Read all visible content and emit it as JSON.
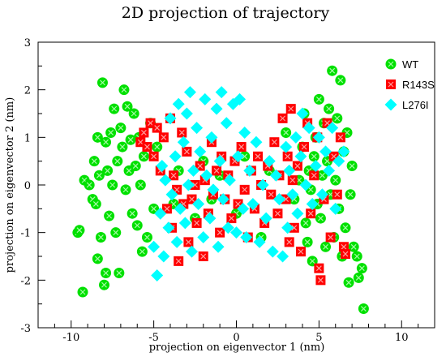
{
  "chart_data": {
    "type": "scatter",
    "title": "2D projection of trajectory",
    "xlabel": "projection on eigenvector 1 (nm)",
    "ylabel": "projection on eigenvector  2 (nm)",
    "xlim": [
      -12,
      12
    ],
    "ylim": [
      -3,
      3
    ],
    "xticks": [
      "-10",
      "-5",
      "0",
      "5",
      "10"
    ],
    "yticks": [
      "-3",
      "-2",
      "-1",
      "0",
      "1",
      "2",
      "3"
    ],
    "legend_position": "top-right",
    "grid": false,
    "series": [
      {
        "name": "WT",
        "color": "#00e000",
        "marker": "circle",
        "points": [
          [
            -9.6,
            -1.0
          ],
          [
            -9.5,
            -0.95
          ],
          [
            -9.3,
            -2.25
          ],
          [
            -9.2,
            0.1
          ],
          [
            -8.9,
            0.0
          ],
          [
            -8.7,
            -0.3
          ],
          [
            -8.6,
            0.5
          ],
          [
            -8.5,
            -0.4
          ],
          [
            -8.4,
            1.0
          ],
          [
            -8.4,
            -1.55
          ],
          [
            -8.3,
            0.2
          ],
          [
            -8.2,
            -1.1
          ],
          [
            -8.1,
            2.15
          ],
          [
            -8.0,
            -2.1
          ],
          [
            -7.9,
            -1.85
          ],
          [
            -7.9,
            0.9
          ],
          [
            -7.8,
            0.3
          ],
          [
            -7.7,
            -0.65
          ],
          [
            -7.6,
            1.1
          ],
          [
            -7.5,
            0.0
          ],
          [
            -7.4,
            1.6
          ],
          [
            -7.3,
            -1.0
          ],
          [
            -7.2,
            0.5
          ],
          [
            -7.1,
            -1.85
          ],
          [
            -7.0,
            1.2
          ],
          [
            -6.9,
            0.8
          ],
          [
            -6.8,
            2.0
          ],
          [
            -6.7,
            -0.1
          ],
          [
            -6.6,
            1.65
          ],
          [
            -6.5,
            0.3
          ],
          [
            -6.4,
            0.95
          ],
          [
            -6.3,
            -0.6
          ],
          [
            -6.2,
            1.5
          ],
          [
            -6.1,
            0.4
          ],
          [
            -6.0,
            -0.85
          ],
          [
            -5.9,
            1.0
          ],
          [
            -5.8,
            0.0
          ],
          [
            -5.7,
            -1.4
          ],
          [
            -5.6,
            0.6
          ],
          [
            -5.4,
            -1.1
          ],
          [
            -5.2,
            1.3
          ],
          [
            -5.0,
            -0.5
          ],
          [
            -4.8,
            0.8
          ],
          [
            -3.8,
            -0.4
          ],
          [
            -3.5,
            0.3
          ],
          [
            -2.5,
            -0.7
          ],
          [
            -2.0,
            0.5
          ],
          [
            -1.5,
            -0.3
          ],
          [
            -1.0,
            0.2
          ],
          [
            0.0,
            -0.6
          ],
          [
            0.5,
            0.6
          ],
          [
            1.5,
            -1.1
          ],
          [
            2.0,
            0.3
          ],
          [
            3.0,
            1.1
          ],
          [
            3.5,
            -0.3
          ],
          [
            3.8,
            0.1
          ],
          [
            4.0,
            0.8
          ],
          [
            4.1,
            1.5
          ],
          [
            4.2,
            -0.8
          ],
          [
            4.3,
            -1.2
          ],
          [
            4.4,
            0.3
          ],
          [
            4.5,
            -0.1
          ],
          [
            4.6,
            -1.6
          ],
          [
            4.7,
            0.6
          ],
          [
            4.8,
            1.0
          ],
          [
            4.9,
            -0.4
          ],
          [
            5.0,
            1.8
          ],
          [
            5.1,
            -0.7
          ],
          [
            5.2,
            0.2
          ],
          [
            5.3,
            1.3
          ],
          [
            5.4,
            -1.3
          ],
          [
            5.5,
            0.5
          ],
          [
            5.6,
            1.6
          ],
          [
            5.7,
            -0.2
          ],
          [
            5.8,
            2.4
          ],
          [
            5.9,
            -1.1
          ],
          [
            6.0,
            0.1
          ],
          [
            6.1,
            1.4
          ],
          [
            6.2,
            -0.5
          ],
          [
            6.3,
            2.2
          ],
          [
            6.4,
            -1.5
          ],
          [
            6.5,
            0.7
          ],
          [
            6.6,
            -0.9
          ],
          [
            6.7,
            1.1
          ],
          [
            6.8,
            -2.05
          ],
          [
            6.9,
            -0.2
          ],
          [
            7.0,
            0.4
          ],
          [
            7.1,
            -1.3
          ],
          [
            7.3,
            -1.5
          ],
          [
            7.4,
            -1.95
          ],
          [
            7.6,
            -1.75
          ],
          [
            7.7,
            -2.6
          ]
        ]
      },
      {
        "name": "R143S",
        "color": "#ff0000",
        "marker": "square",
        "points": [
          [
            -5.8,
            0.9
          ],
          [
            -5.6,
            1.1
          ],
          [
            -5.4,
            0.8
          ],
          [
            -5.2,
            1.3
          ],
          [
            -5.0,
            0.6
          ],
          [
            -4.8,
            1.2
          ],
          [
            -4.6,
            0.3
          ],
          [
            -4.4,
            1.0
          ],
          [
            -4.2,
            -0.5
          ],
          [
            -4.0,
            1.4
          ],
          [
            -3.9,
            -0.9
          ],
          [
            -3.8,
            0.2
          ],
          [
            -3.6,
            -0.1
          ],
          [
            -3.5,
            -1.6
          ],
          [
            -3.3,
            1.1
          ],
          [
            -3.2,
            -0.4
          ],
          [
            -3.0,
            0.7
          ],
          [
            -2.9,
            -1.2
          ],
          [
            -2.7,
            -0.3
          ],
          [
            -2.5,
            0.0
          ],
          [
            -2.4,
            -0.8
          ],
          [
            -2.2,
            0.4
          ],
          [
            -2.0,
            -1.5
          ],
          [
            -1.9,
            0.1
          ],
          [
            -1.7,
            -0.6
          ],
          [
            -1.5,
            0.9
          ],
          [
            -1.4,
            -0.2
          ],
          [
            -1.2,
            0.3
          ],
          [
            -1.0,
            -1.0
          ],
          [
            -0.9,
            0.6
          ],
          [
            -0.7,
            -0.3
          ],
          [
            -0.5,
            0.2
          ],
          [
            -0.3,
            -0.7
          ],
          [
            -0.1,
            0.5
          ],
          [
            0.1,
            -0.4
          ],
          [
            0.3,
            0.8
          ],
          [
            0.5,
            -0.1
          ],
          [
            0.7,
            -1.1
          ],
          [
            0.9,
            0.3
          ],
          [
            1.1,
            -0.5
          ],
          [
            1.3,
            0.6
          ],
          [
            1.5,
            0.0
          ],
          [
            1.7,
            -0.8
          ],
          [
            1.9,
            0.4
          ],
          [
            2.1,
            -0.2
          ],
          [
            2.3,
            0.9
          ],
          [
            2.5,
            -0.6
          ],
          [
            2.6,
            0.2
          ],
          [
            2.8,
            1.4
          ],
          [
            3.0,
            -0.3
          ],
          [
            3.1,
            0.6
          ],
          [
            3.2,
            -1.2
          ],
          [
            3.3,
            1.6
          ],
          [
            3.4,
            0.1
          ],
          [
            3.5,
            -0.9
          ],
          [
            3.7,
            0.4
          ],
          [
            3.9,
            -1.4
          ],
          [
            4.1,
            0.8
          ],
          [
            4.3,
            1.3
          ],
          [
            4.5,
            -0.6
          ],
          [
            4.7,
            0.2
          ],
          [
            4.9,
            1.0
          ],
          [
            5.0,
            -1.75
          ],
          [
            5.1,
            -2.0
          ],
          [
            5.3,
            -0.3
          ],
          [
            5.5,
            1.3
          ],
          [
            5.7,
            -1.1
          ],
          [
            5.9,
            0.6
          ],
          [
            6.1,
            -0.2
          ],
          [
            6.3,
            1.0
          ],
          [
            6.5,
            -1.3
          ],
          [
            6.6,
            -1.45
          ]
        ]
      },
      {
        "name": "L276I",
        "color": "#00ffff",
        "marker": "diamond",
        "points": [
          [
            -5.0,
            -1.3
          ],
          [
            -4.8,
            -1.9
          ],
          [
            -4.6,
            -0.6
          ],
          [
            -4.5,
            0.4
          ],
          [
            -4.4,
            -1.5
          ],
          [
            -4.3,
            0.1
          ],
          [
            -4.1,
            -0.9
          ],
          [
            -4.0,
            1.4
          ],
          [
            -3.9,
            -0.2
          ],
          [
            -3.7,
            0.6
          ],
          [
            -3.6,
            -1.2
          ],
          [
            -3.5,
            1.7
          ],
          [
            -3.4,
            -0.5
          ],
          [
            -3.2,
            0.9
          ],
          [
            -3.1,
            -0.8
          ],
          [
            -3.0,
            1.5
          ],
          [
            -2.9,
            0.0
          ],
          [
            -2.8,
            1.95
          ],
          [
            -2.7,
            -1.4
          ],
          [
            -2.6,
            0.3
          ],
          [
            -2.4,
            1.2
          ],
          [
            -2.3,
            -0.4
          ],
          [
            -2.2,
            0.7
          ],
          [
            -2.0,
            -1.1
          ],
          [
            -1.9,
            1.8
          ],
          [
            -1.8,
            0.2
          ],
          [
            -1.6,
            -0.7
          ],
          [
            -1.5,
            1.0
          ],
          [
            -1.4,
            -0.1
          ],
          [
            -1.2,
            1.6
          ],
          [
            -1.1,
            -1.3
          ],
          [
            -1.0,
            0.5
          ],
          [
            -0.9,
            1.95
          ],
          [
            -0.8,
            -0.3
          ],
          [
            -0.6,
            1.3
          ],
          [
            -0.5,
            -0.9
          ],
          [
            -0.4,
            0.1
          ],
          [
            -0.2,
            1.7
          ],
          [
            0.0,
            -1.0
          ],
          [
            0.1,
            0.6
          ],
          [
            0.2,
            1.8
          ],
          [
            0.4,
            -0.5
          ],
          [
            0.5,
            1.1
          ],
          [
            0.6,
            -1.1
          ],
          [
            0.8,
            0.3
          ],
          [
            1.0,
            -0.4
          ],
          [
            1.2,
            0.9
          ],
          [
            1.4,
            -1.2
          ],
          [
            1.6,
            0.0
          ],
          [
            1.8,
            -0.7
          ],
          [
            2.0,
            0.5
          ],
          [
            2.2,
            -1.4
          ],
          [
            2.4,
            0.2
          ],
          [
            2.6,
            -0.3
          ],
          [
            2.8,
            -1.5
          ],
          [
            3.0,
            0.8
          ],
          [
            3.1,
            -0.9
          ],
          [
            3.2,
            0.3
          ],
          [
            3.4,
            -0.2
          ],
          [
            3.6,
            1.0
          ],
          [
            3.7,
            -0.6
          ],
          [
            3.9,
            0.6
          ],
          [
            4.0,
            1.5
          ],
          [
            4.2,
            0.0
          ],
          [
            4.4,
            1.2
          ],
          [
            4.6,
            -0.4
          ],
          [
            4.8,
            0.4
          ],
          [
            5.0,
            1.0
          ],
          [
            5.2,
            -0.2
          ],
          [
            5.4,
            0.7
          ],
          [
            5.6,
            0.3
          ],
          [
            5.8,
            1.2
          ],
          [
            6.0,
            -0.5
          ],
          [
            6.2,
            0.5
          ],
          [
            6.5,
            0.7
          ]
        ]
      }
    ]
  }
}
